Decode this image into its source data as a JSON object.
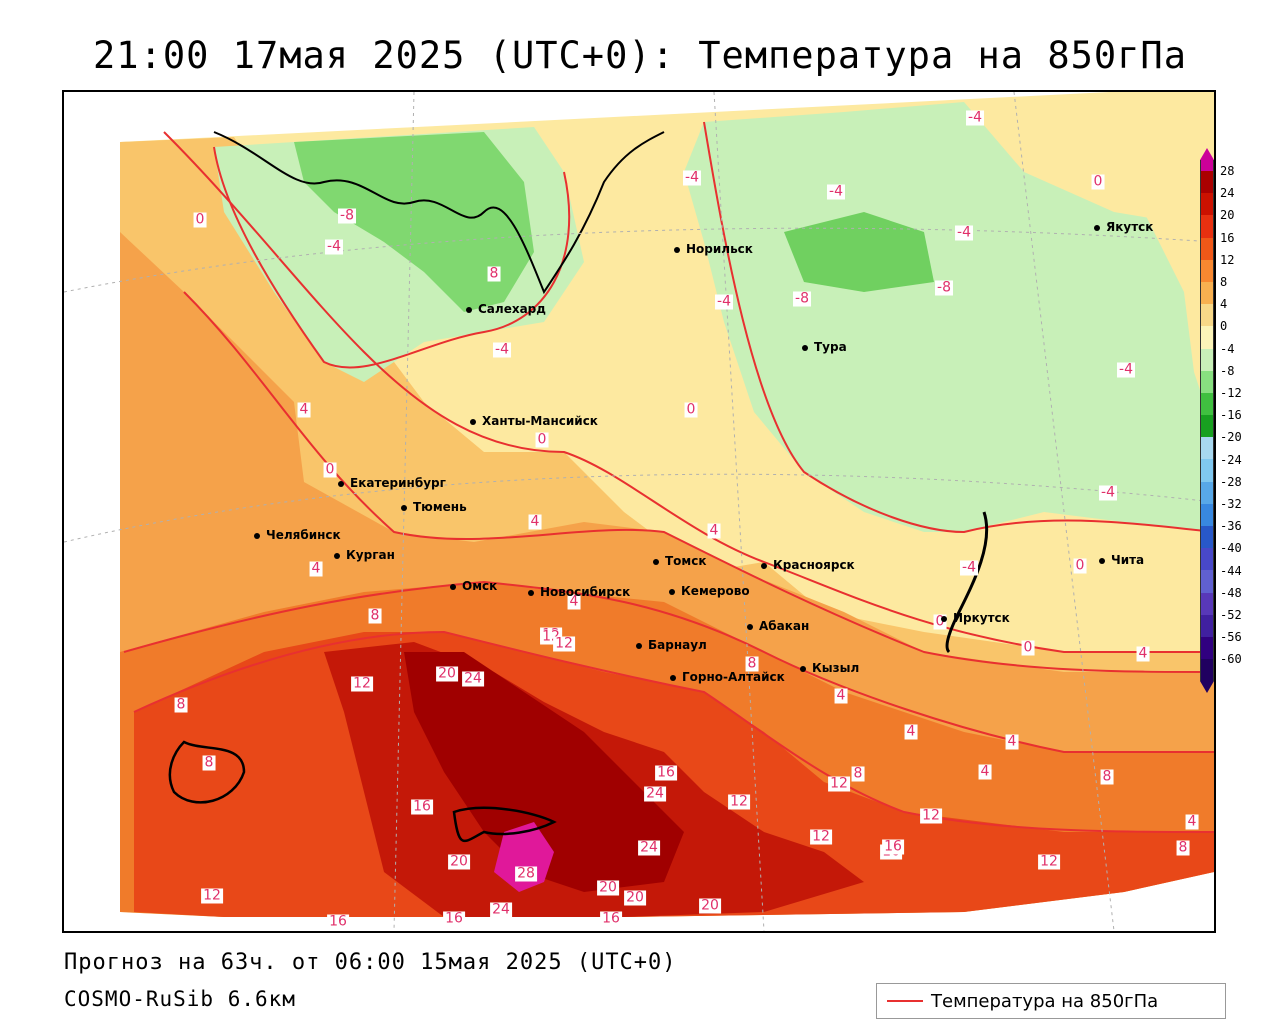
{
  "header": {
    "title": "21:00 17мая 2025 (UTC+0): Температура на 850гПа"
  },
  "footer": {
    "forecast": "Прогноз на 63ч. от 06:00 15мая 2025 (UTC+0)",
    "model": "COSMO-RuSib 6.6км"
  },
  "legend": {
    "label": "Температура на 850гПа",
    "line_color": "#e83030"
  },
  "cities": [
    {
      "name": "Норильск"
    },
    {
      "name": "Якутск"
    },
    {
      "name": "Салехард"
    },
    {
      "name": "Тура"
    },
    {
      "name": "Ханты-Мансийск"
    },
    {
      "name": "Екатеринбург"
    },
    {
      "name": "Тюмень"
    },
    {
      "name": "Челябинск"
    },
    {
      "name": "Курган"
    },
    {
      "name": "Омск"
    },
    {
      "name": "Новосибирск"
    },
    {
      "name": "Томск"
    },
    {
      "name": "Кемерово"
    },
    {
      "name": "Красноярск"
    },
    {
      "name": "Абакан"
    },
    {
      "name": "Иркутск"
    },
    {
      "name": "Чита"
    },
    {
      "name": "Барнаул"
    },
    {
      "name": "Горно-Алтайск"
    },
    {
      "name": "Кызыл"
    }
  ],
  "contour_labels": [
    "-4",
    "0",
    "-4",
    "-8",
    "-4",
    "-4",
    "8",
    "-4",
    "-8",
    "-4",
    "-8",
    "-4",
    "4",
    "0",
    "0",
    "-4",
    "0",
    "-4",
    "4",
    "4",
    "-4",
    "0",
    "0",
    "4",
    "8",
    "4",
    "12",
    "12",
    "8",
    "8",
    "8",
    "20",
    "24",
    "16",
    "16",
    "20",
    "12",
    "12",
    "12",
    "8",
    "4",
    "4",
    "4",
    "8",
    "4",
    "12",
    "12",
    "16",
    "24",
    "12",
    "24",
    "16",
    "20",
    "28",
    "12",
    "16",
    "20",
    "24",
    "16",
    "20",
    "12",
    "4",
    "8",
    "16",
    "0",
    "0",
    "4"
  ],
  "colorbar": {
    "labels": [
      "28",
      "24",
      "20",
      "16",
      "12",
      "8",
      "4",
      "0",
      "-4",
      "-8",
      "-12",
      "-16",
      "-20",
      "-24",
      "-28",
      "-32",
      "-36",
      "-40",
      "-44",
      "-48",
      "-52",
      "-56",
      "-60"
    ],
    "colors": [
      "#cc0099",
      "#aa0000",
      "#cc1100",
      "#e83010",
      "#f05818",
      "#f88830",
      "#f8b050",
      "#f8d888",
      "#fcf4b8",
      "#c8f0b8",
      "#88e080",
      "#40c040",
      "#18a020",
      "#a8d8f0",
      "#80c8f0",
      "#58a8e8",
      "#3888e0",
      "#2858c8",
      "#4848c8",
      "#6060d0",
      "#5838b8",
      "#4020a0",
      "#300080",
      "#200060"
    ]
  }
}
